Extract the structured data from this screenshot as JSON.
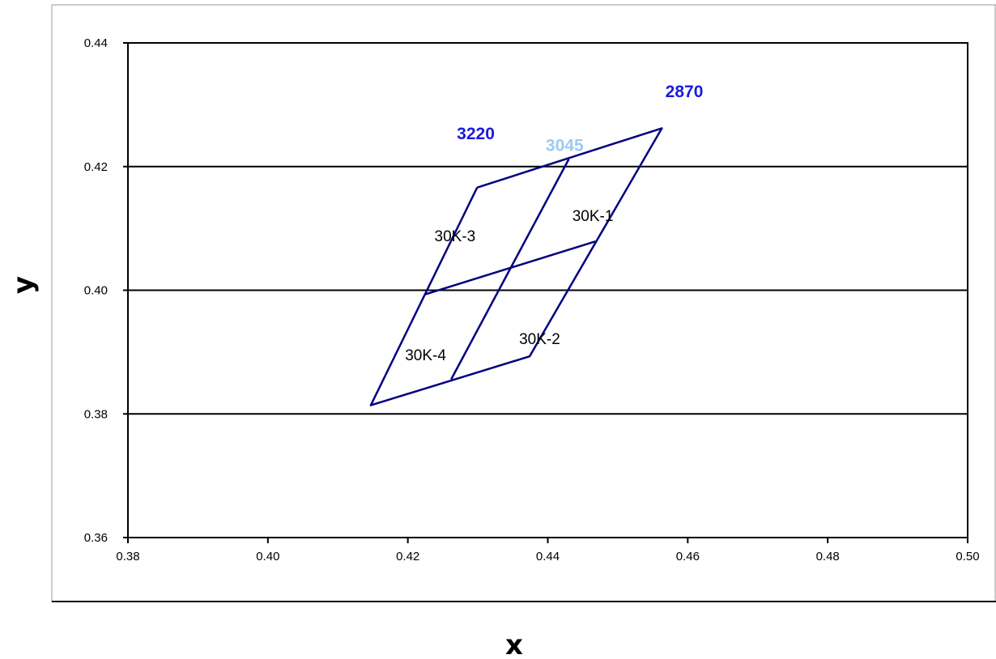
{
  "chart_data": {
    "type": "line",
    "title": "",
    "xlabel": "x",
    "ylabel": "y",
    "xlim": [
      0.38,
      0.5
    ],
    "ylim": [
      0.36,
      0.44
    ],
    "x_ticks": [
      {
        "value": 0.38,
        "label": "0.38"
      },
      {
        "value": 0.4,
        "label": "0.40"
      },
      {
        "value": 0.42,
        "label": "0.42"
      },
      {
        "value": 0.44,
        "label": "0.44"
      },
      {
        "value": 0.46,
        "label": "0.46"
      },
      {
        "value": 0.48,
        "label": "0.48"
      },
      {
        "value": 0.5,
        "label": "0.50"
      }
    ],
    "y_ticks": [
      {
        "value": 0.36,
        "label": "0.36"
      },
      {
        "value": 0.38,
        "label": "0.38"
      },
      {
        "value": 0.4,
        "label": "0.40"
      },
      {
        "value": 0.42,
        "label": "0.42"
      },
      {
        "value": 0.44,
        "label": "0.44"
      }
    ],
    "grid": {
      "horizontal": true,
      "vertical": false
    },
    "line_color": "#000080",
    "series": [
      {
        "points": [
          [
            0.4299,
            0.4166
          ],
          [
            0.4563,
            0.4262
          ],
          [
            0.4374,
            0.3893
          ],
          [
            0.4147,
            0.3814
          ],
          [
            0.4299,
            0.4166
          ]
        ]
      },
      {
        "points": [
          [
            0.443,
            0.4212
          ],
          [
            0.4262,
            0.3856
          ]
        ]
      },
      {
        "points": [
          [
            0.4224,
            0.3993
          ],
          [
            0.4468,
            0.4079
          ]
        ]
      }
    ],
    "region_labels": [
      {
        "text": "30K-1",
        "x": 0.4435,
        "y": 0.4112
      },
      {
        "text": "30K-2",
        "x": 0.4359,
        "y": 0.3913
      },
      {
        "text": "30K-3",
        "x": 0.4238,
        "y": 0.4079
      },
      {
        "text": "30K-4",
        "x": 0.4196,
        "y": 0.3887
      }
    ],
    "cct_labels": [
      {
        "text": "3220",
        "x": 0.427,
        "y": 0.4244,
        "color": "#1a1adc"
      },
      {
        "text": "3045",
        "x": 0.4397,
        "y": 0.4225,
        "color": "#99ccf5"
      },
      {
        "text": "2870",
        "x": 0.4568,
        "y": 0.4312,
        "color": "#1a1adc"
      }
    ]
  }
}
